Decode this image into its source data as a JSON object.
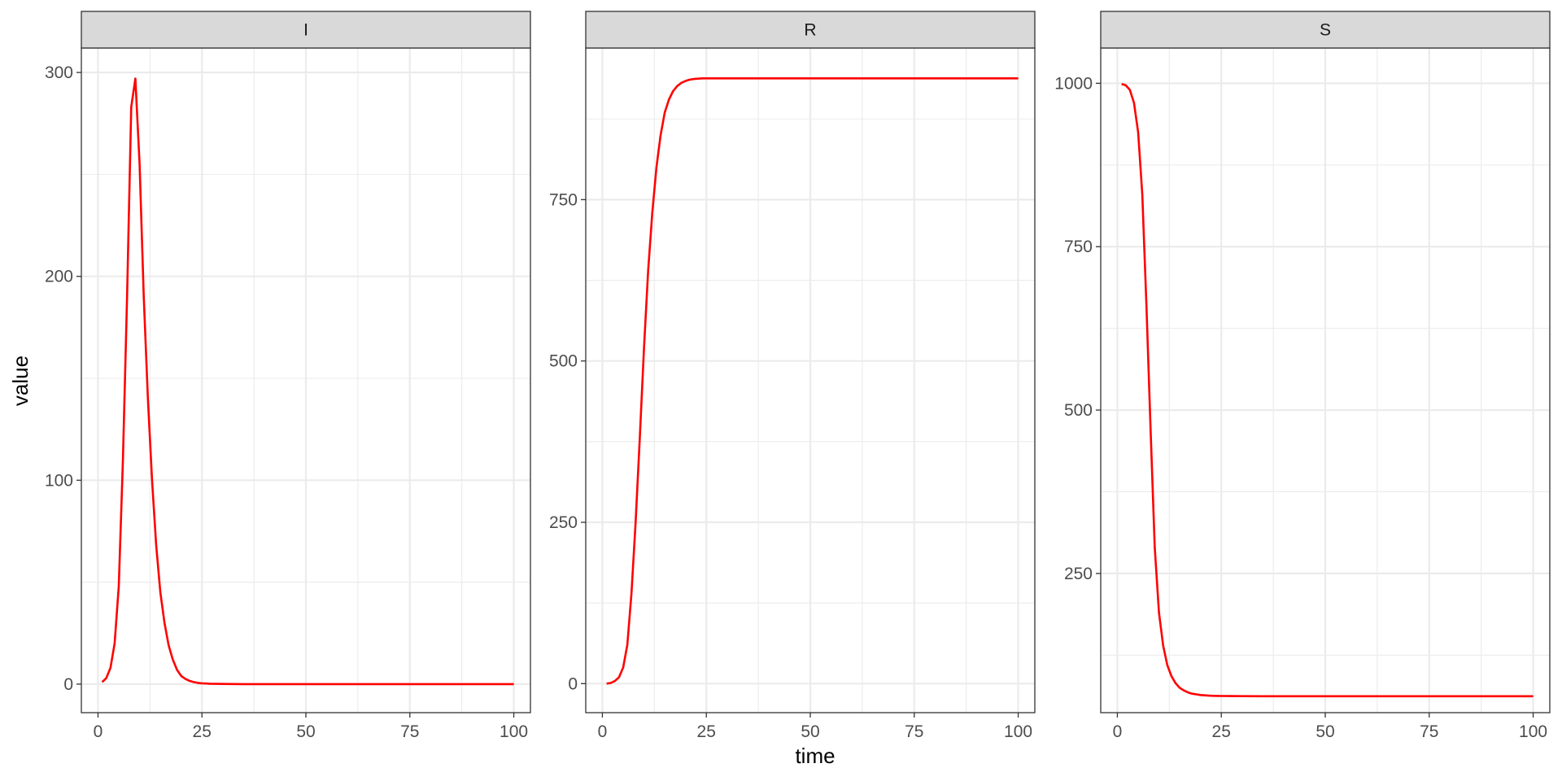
{
  "chart_data": {
    "type": "line",
    "layout": "facets",
    "xlabel": "time",
    "ylabel": "value",
    "line_color": "#ff0000",
    "facets": [
      {
        "strip_label": "I",
        "xlim": [
          -4,
          104
        ],
        "ylim": [
          -14,
          312
        ],
        "x_ticks": [
          0,
          25,
          50,
          75,
          100
        ],
        "y_ticks": [
          0,
          100,
          200,
          300
        ],
        "x": [
          1,
          2,
          3,
          4,
          5,
          6,
          7,
          8,
          9,
          10,
          11,
          12,
          13,
          14,
          15,
          16,
          17,
          18,
          19,
          20,
          21,
          22,
          23,
          24,
          25,
          27,
          30,
          35,
          40,
          50,
          60,
          70,
          80,
          90,
          100
        ],
        "values": [
          1,
          3,
          8,
          20,
          48,
          110,
          190,
          283,
          297,
          255,
          190,
          140,
          100,
          68,
          45,
          30,
          19,
          12,
          7,
          4,
          2.6,
          1.6,
          1,
          0.6,
          0.4,
          0.2,
          0.1,
          0,
          0,
          0,
          0,
          0,
          0,
          0,
          0
        ]
      },
      {
        "strip_label": "R",
        "xlim": [
          -4,
          104
        ],
        "ylim": [
          -45,
          985
        ],
        "x_ticks": [
          0,
          25,
          50,
          75,
          100
        ],
        "y_ticks": [
          0,
          250,
          500,
          750
        ],
        "x": [
          1,
          2,
          3,
          4,
          5,
          6,
          7,
          8,
          9,
          10,
          11,
          12,
          13,
          14,
          15,
          16,
          17,
          18,
          19,
          20,
          21,
          22,
          23,
          24,
          25,
          27,
          30,
          35,
          40,
          50,
          60,
          70,
          80,
          90,
          100
        ],
        "values": [
          0,
          1,
          4,
          10,
          25,
          60,
          140,
          250,
          380,
          520,
          640,
          730,
          800,
          850,
          885,
          905,
          918,
          926,
          931,
          934,
          936,
          937,
          937.5,
          938,
          938,
          938,
          938,
          938,
          938,
          938,
          938,
          938,
          938,
          938,
          938
        ]
      },
      {
        "strip_label": "S",
        "xlim": [
          -4,
          104
        ],
        "ylim": [
          37,
          1054
        ],
        "x_ticks": [
          0,
          25,
          50,
          75,
          100
        ],
        "y_ticks": [
          250,
          500,
          750,
          1000
        ],
        "x": [
          1,
          2,
          3,
          4,
          5,
          6,
          7,
          8,
          9,
          10,
          11,
          12,
          13,
          14,
          15,
          16,
          17,
          18,
          19,
          20,
          21,
          22,
          23,
          24,
          25,
          27,
          30,
          35,
          40,
          50,
          60,
          70,
          80,
          90,
          100
        ],
        "values": [
          999,
          997,
          990,
          970,
          925,
          830,
          660,
          470,
          290,
          190,
          140,
          110,
          93,
          82,
          75,
          71,
          68,
          66,
          65,
          64,
          63.5,
          63,
          62.8,
          62.6,
          62.5,
          62.4,
          62.3,
          62.2,
          62.2,
          62.2,
          62.2,
          62.2,
          62.2,
          62.2,
          62.2
        ]
      }
    ]
  }
}
